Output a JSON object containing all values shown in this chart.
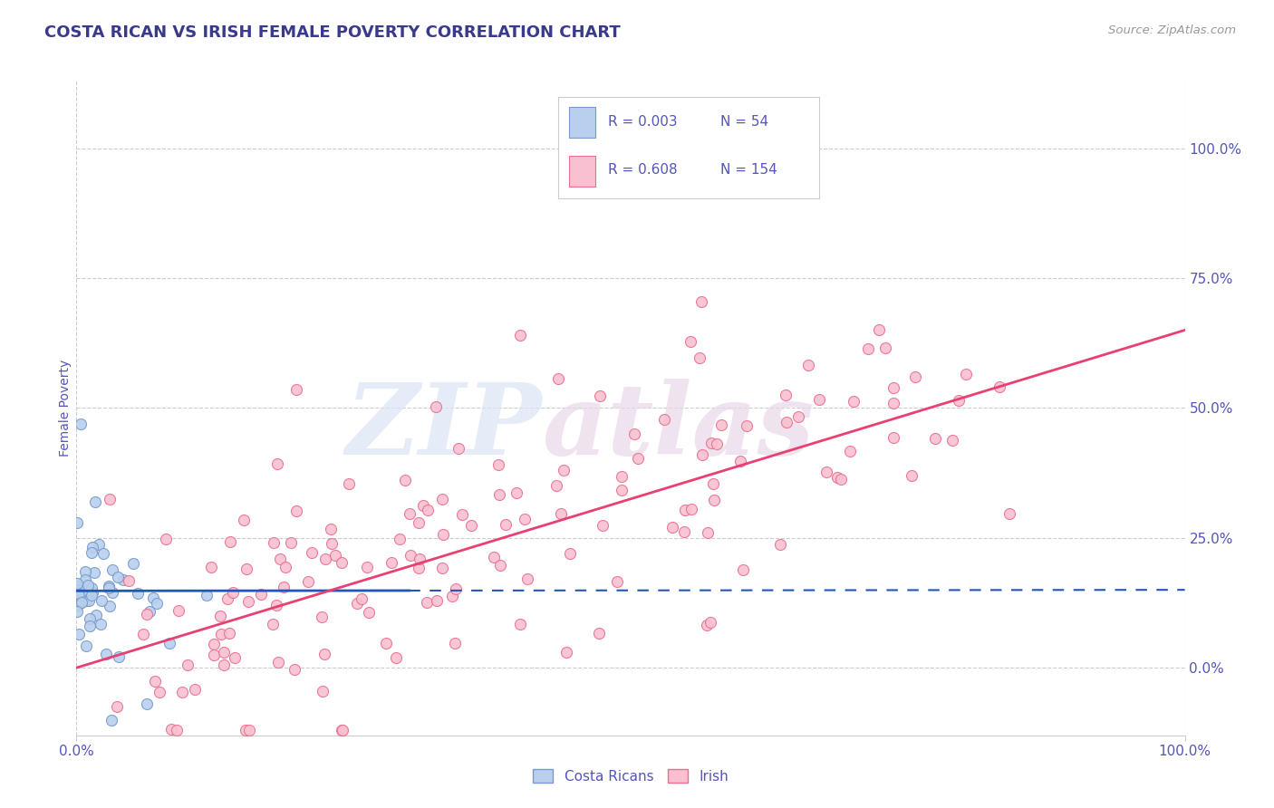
{
  "title": "COSTA RICAN VS IRISH FEMALE POVERTY CORRELATION CHART",
  "source_text": "Source: ZipAtlas.com",
  "ylabel": "Female Poverty",
  "xlim": [
    0.0,
    1.0
  ],
  "ylim": [
    -0.13,
    1.13
  ],
  "xtick_labels": [
    "0.0%",
    "100.0%"
  ],
  "ytick_labels": [
    "0.0%",
    "25.0%",
    "50.0%",
    "75.0%",
    "100.0%"
  ],
  "ytick_positions": [
    0.0,
    0.25,
    0.5,
    0.75,
    1.0
  ],
  "title_color": "#3a3a8c",
  "title_fontsize": 13,
  "axis_label_color": "#5555bb",
  "tick_label_color": "#5555bb",
  "source_color": "#999999",
  "blue_scatter_color": "#b8d0ee",
  "blue_scatter_edge": "#7799cc",
  "pink_scatter_color": "#f8c0d0",
  "pink_scatter_edge": "#e87090",
  "blue_line_color": "#2255bb",
  "pink_line_color": "#e84070",
  "legend_blue_color": "#b8d0ee",
  "legend_pink_color": "#f8c0d0",
  "legend_blue_edge": "#7799cc",
  "legend_pink_edge": "#e87090",
  "R_blue": "0.003",
  "N_blue": "54",
  "R_pink": "0.608",
  "N_pink": "154",
  "grid_color": "#cccccc",
  "background_color": "#ffffff",
  "blue_line_y_intercept": 0.148,
  "blue_line_slope": 0.002,
  "blue_line_solid_end": 0.3,
  "pink_line_y_intercept": 0.0,
  "pink_line_slope": 0.65
}
